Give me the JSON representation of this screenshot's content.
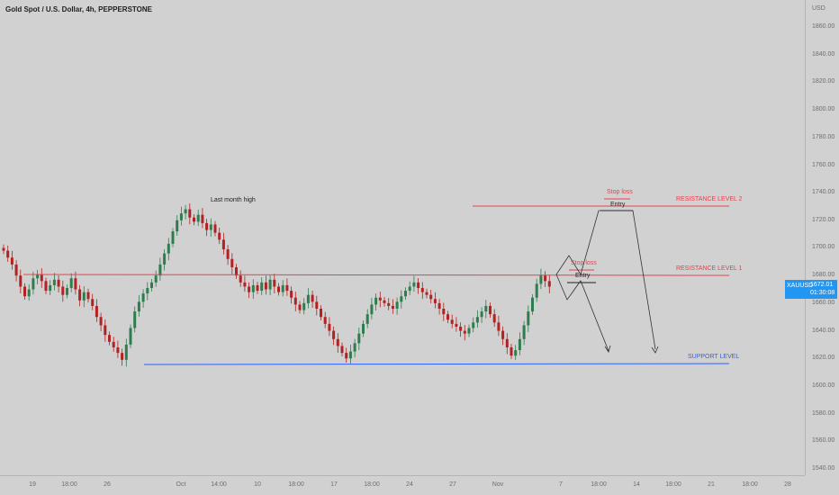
{
  "header": {
    "title": "Gold Spot / U.S. Dollar, 4h, PEPPERSTONE"
  },
  "price_axis": {
    "currency": "USD",
    "ticks": [
      "1860.00",
      "1840.00",
      "1820.00",
      "1800.00",
      "1780.00",
      "1760.00",
      "1740.00",
      "1720.00",
      "1700.00",
      "1680.00",
      "1660.00",
      "1640.00",
      "1620.00",
      "1600.00",
      "1580.00",
      "1560.00",
      "1540.00"
    ],
    "current_symbol": "XAUUSD",
    "current_price": "1672.01",
    "countdown": "01:30:08"
  },
  "time_axis": {
    "ticks": [
      "19",
      "18:00",
      "26",
      "Oct",
      "14:00",
      "10",
      "18:00",
      "17",
      "18:00",
      "24",
      "27",
      "Nov",
      "7",
      "18:00",
      "14",
      "18:00",
      "21",
      "18:00",
      "28"
    ]
  },
  "annotations": {
    "last_month_high": "Last month high",
    "resistance_2": "RESISTANCE LEVEL 2",
    "resistance_1": "RESISTANCE LEVEL 1",
    "support": "SUPPORT LEVEL",
    "stop_loss_upper": "Stop loss",
    "entry_upper": "Entry",
    "stop_loss_lower": "Stop loss",
    "entry_lower": "Entry"
  },
  "colors": {
    "background": "#d1d1d1",
    "resistance": "#e8414d",
    "support": "#2962ff",
    "candle_up": "#2e7d4f",
    "candle_down": "#b22222",
    "badge": "#2196f3"
  },
  "chart_data": {
    "type": "candlestick",
    "symbol": "XAUUSD",
    "timeframe": "4h",
    "levels": {
      "resistance_2": 1730,
      "resistance_1": 1682,
      "support": 1617
    },
    "trade_plans": [
      {
        "entry": 1728,
        "stop_loss": 1735
      },
      {
        "entry": 1675,
        "stop_loss": 1682
      }
    ],
    "closes": [
      1698,
      1693,
      1688,
      1680,
      1672,
      1665,
      1670,
      1678,
      1681,
      1676,
      1669,
      1673,
      1677,
      1672,
      1666,
      1671,
      1678,
      1670,
      1662,
      1668,
      1663,
      1658,
      1650,
      1644,
      1637,
      1632,
      1628,
      1624,
      1619,
      1630,
      1642,
      1654,
      1661,
      1667,
      1671,
      1675,
      1680,
      1688,
      1696,
      1703,
      1712,
      1720,
      1725,
      1728,
      1722,
      1719,
      1724,
      1718,
      1713,
      1717,
      1711,
      1706,
      1699,
      1692,
      1686,
      1680,
      1675,
      1672,
      1668,
      1673,
      1669,
      1675,
      1670,
      1677,
      1672,
      1668,
      1673,
      1669,
      1664,
      1659,
      1655,
      1660,
      1666,
      1661,
      1656,
      1650,
      1645,
      1640,
      1634,
      1629,
      1624,
      1620,
      1625,
      1631,
      1638,
      1645,
      1652,
      1659,
      1664,
      1662,
      1660,
      1658,
      1656,
      1661,
      1665,
      1669,
      1672,
      1675,
      1671,
      1668,
      1666,
      1663,
      1660,
      1656,
      1652,
      1648,
      1645,
      1643,
      1640,
      1638,
      1642,
      1646,
      1650,
      1654,
      1658,
      1652,
      1646,
      1640,
      1634,
      1628,
      1622,
      1626,
      1634,
      1644,
      1654,
      1664,
      1674,
      1680,
      1676,
      1672
    ]
  }
}
